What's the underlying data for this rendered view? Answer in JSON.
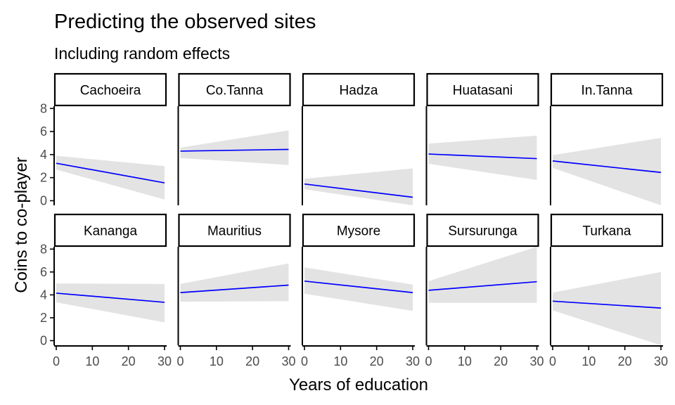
{
  "figure": {
    "title": "Predicting the observed sites",
    "subtitle": "Including random effects",
    "xlabel": "Years of education",
    "ylabel": "Coins to co-player"
  },
  "colors": {
    "line": "#0000ff",
    "ribbon": "#e3e3e3",
    "axis": "#000000",
    "tick_text": "#4d4d4d",
    "text": "#000000",
    "background": "#ffffff"
  },
  "shared_axes": {
    "xlim": [
      0,
      30
    ],
    "ylim": [
      -0.4,
      8.2
    ],
    "xticks": [
      0,
      10,
      20,
      30
    ],
    "yticks": [
      0,
      2,
      4,
      6,
      8
    ],
    "grid": false,
    "facet_layout": "2 rows x 5 columns"
  },
  "chart_data": [
    {
      "type": "line",
      "panel": "Cachoeira",
      "x": [
        0,
        30
      ],
      "y": [
        3.25,
        1.55
      ],
      "ci_lower": [
        2.7,
        0.1
      ],
      "ci_upper": [
        3.9,
        3.0
      ]
    },
    {
      "type": "line",
      "panel": "Co.Tanna",
      "x": [
        0,
        30
      ],
      "y": [
        4.3,
        4.45
      ],
      "ci_lower": [
        3.7,
        3.1
      ],
      "ci_upper": [
        4.6,
        6.1
      ]
    },
    {
      "type": "line",
      "panel": "Hadza",
      "x": [
        0,
        30
      ],
      "y": [
        1.45,
        0.3
      ],
      "ci_lower": [
        1.0,
        -0.4
      ],
      "ci_upper": [
        1.9,
        2.8
      ]
    },
    {
      "type": "line",
      "panel": "Huatasani",
      "x": [
        0,
        30
      ],
      "y": [
        4.05,
        3.65
      ],
      "ci_lower": [
        3.2,
        1.8
      ],
      "ci_upper": [
        4.95,
        5.65
      ]
    },
    {
      "type": "line",
      "panel": "In.Tanna",
      "x": [
        0,
        30
      ],
      "y": [
        3.45,
        2.45
      ],
      "ci_lower": [
        2.85,
        -0.4
      ],
      "ci_upper": [
        3.95,
        5.45
      ]
    },
    {
      "type": "line",
      "panel": "Kananga",
      "x": [
        0,
        30
      ],
      "y": [
        4.15,
        3.35
      ],
      "ci_lower": [
        3.35,
        1.6
      ],
      "ci_upper": [
        5.0,
        4.95
      ]
    },
    {
      "type": "line",
      "panel": "Mauritius",
      "x": [
        0,
        30
      ],
      "y": [
        4.2,
        4.85
      ],
      "ci_lower": [
        3.4,
        3.45
      ],
      "ci_upper": [
        4.95,
        6.75
      ]
    },
    {
      "type": "line",
      "panel": "Mysore",
      "x": [
        0,
        30
      ],
      "y": [
        5.2,
        4.2
      ],
      "ci_lower": [
        4.1,
        2.6
      ],
      "ci_upper": [
        6.4,
        4.9
      ]
    },
    {
      "type": "line",
      "panel": "Sursurunga",
      "x": [
        0,
        30
      ],
      "y": [
        4.4,
        5.15
      ],
      "ci_lower": [
        3.3,
        3.3
      ],
      "ci_upper": [
        5.2,
        8.2
      ]
    },
    {
      "type": "line",
      "panel": "Turkana",
      "x": [
        0,
        30
      ],
      "y": [
        3.45,
        2.85
      ],
      "ci_lower": [
        2.65,
        -0.4
      ],
      "ci_upper": [
        4.2,
        6.0
      ]
    }
  ]
}
